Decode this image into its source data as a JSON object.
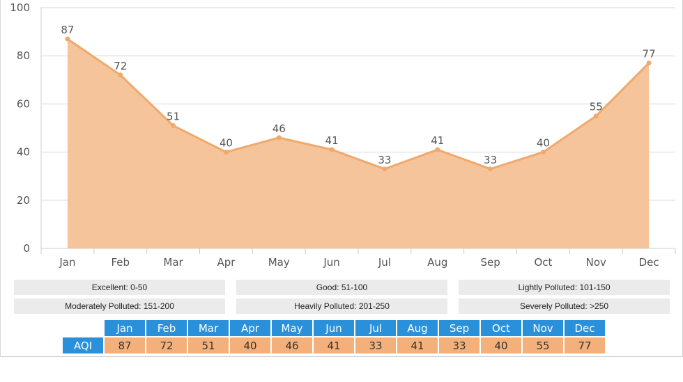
{
  "chart_data": {
    "type": "area",
    "categories": [
      "Jan",
      "Feb",
      "Mar",
      "Apr",
      "May",
      "Jun",
      "Jul",
      "Aug",
      "Sep",
      "Oct",
      "Nov",
      "Dec"
    ],
    "values": [
      87,
      72,
      51,
      40,
      46,
      41,
      33,
      41,
      33,
      40,
      55,
      77
    ],
    "ylim": [
      0,
      100
    ],
    "yticks": [
      0,
      20,
      40,
      60,
      80,
      100
    ],
    "grid": true,
    "fill_color": "#f5c49a",
    "line_color": "#f0a96c",
    "label_color": "#555555"
  },
  "legend": [
    {
      "label": "Excellent: 0-50"
    },
    {
      "label": "Good: 51-100"
    },
    {
      "label": "Lightly Polluted: 101-150"
    },
    {
      "label": "Moderately Polluted: 151-200"
    },
    {
      "label": "Heavily Polluted: 201-250"
    },
    {
      "label": "Severely Polluted: >250"
    }
  ],
  "table": {
    "row_label": "AQI",
    "header_color": "#2a90d9",
    "value_color": "#f4b07a"
  }
}
